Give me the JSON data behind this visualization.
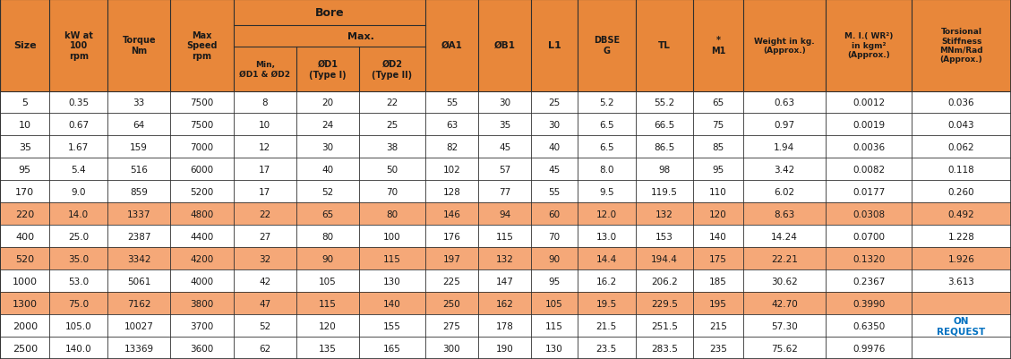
{
  "header_bg": "#E8873A",
  "row_bg_light": "#FFFFFF",
  "row_bg_dark": "#F5A878",
  "border_color": "#2F2F2F",
  "text_color_black": "#1A1A1A",
  "text_color_blue": "#0070C0",
  "col_widths_rel": [
    3.0,
    3.5,
    3.8,
    3.8,
    3.8,
    3.8,
    4.0,
    3.2,
    3.2,
    2.8,
    3.5,
    3.5,
    3.0,
    5.0,
    5.2,
    6.0
  ],
  "rows": [
    [
      "5",
      "0.35",
      "33",
      "7500",
      "8",
      "20",
      "22",
      "55",
      "30",
      "25",
      "5.2",
      "55.2",
      "65",
      "0.63",
      "0.0012",
      "0.036"
    ],
    [
      "10",
      "0.67",
      "64",
      "7500",
      "10",
      "24",
      "25",
      "63",
      "35",
      "30",
      "6.5",
      "66.5",
      "75",
      "0.97",
      "0.0019",
      "0.043"
    ],
    [
      "35",
      "1.67",
      "159",
      "7000",
      "12",
      "30",
      "38",
      "82",
      "45",
      "40",
      "6.5",
      "86.5",
      "85",
      "1.94",
      "0.0036",
      "0.062"
    ],
    [
      "95",
      "5.4",
      "516",
      "6000",
      "17",
      "40",
      "50",
      "102",
      "57",
      "45",
      "8.0",
      "98",
      "95",
      "3.42",
      "0.0082",
      "0.118"
    ],
    [
      "170",
      "9.0",
      "859",
      "5200",
      "17",
      "52",
      "70",
      "128",
      "77",
      "55",
      "9.5",
      "119.5",
      "110",
      "6.02",
      "0.0177",
      "0.260"
    ],
    [
      "220",
      "14.0",
      "1337",
      "4800",
      "22",
      "65",
      "80",
      "146",
      "94",
      "60",
      "12.0",
      "132",
      "120",
      "8.63",
      "0.0308",
      "0.492"
    ],
    [
      "400",
      "25.0",
      "2387",
      "4400",
      "27",
      "80",
      "100",
      "176",
      "115",
      "70",
      "13.0",
      "153",
      "140",
      "14.24",
      "0.0700",
      "1.228"
    ],
    [
      "520",
      "35.0",
      "3342",
      "4200",
      "32",
      "90",
      "115",
      "197",
      "132",
      "90",
      "14.4",
      "194.4",
      "175",
      "22.21",
      "0.1320",
      "1.926"
    ],
    [
      "1000",
      "53.0",
      "5061",
      "4000",
      "42",
      "105",
      "130",
      "225",
      "147",
      "95",
      "16.2",
      "206.2",
      "185",
      "30.62",
      "0.2367",
      "3.613"
    ],
    [
      "1300",
      "75.0",
      "7162",
      "3800",
      "47",
      "115",
      "140",
      "250",
      "162",
      "105",
      "19.5",
      "229.5",
      "195",
      "42.70",
      "0.3990",
      ""
    ],
    [
      "2000",
      "105.0",
      "10027",
      "3700",
      "52",
      "120",
      "155",
      "275",
      "178",
      "115",
      "21.5",
      "251.5",
      "215",
      "57.30",
      "0.6350",
      "ON REQUEST"
    ],
    [
      "2500",
      "140.0",
      "13369",
      "3600",
      "62",
      "135",
      "165",
      "300",
      "190",
      "130",
      "23.5",
      "283.5",
      "235",
      "75.62",
      "0.9976",
      ""
    ]
  ],
  "row_shading": [
    0,
    0,
    0,
    0,
    0,
    1,
    0,
    1,
    0,
    1,
    0,
    0
  ],
  "col_labels": [
    "Size",
    "kW at\n100\nrpm",
    "Torque\nNm",
    "Max\nSpeed\nrpm",
    "Min,\nØD1 & ØD2",
    "ØD1\n(Type I)",
    "ØD2\n(Type II)",
    "ØA1",
    "ØB1",
    "L1",
    "DBSE\nG",
    "TL",
    "*\nM1",
    "Weight in kg.\n(Approx.)",
    "M. I.( WR²)\nin kgm²\n(Approx.)",
    "Torsional\nStiffness\nMNm/Rad\n(Approx.)"
  ],
  "col_label_fs": [
    8,
    7,
    7,
    7,
    6.5,
    7,
    7,
    7.5,
    7.5,
    8,
    7,
    7.5,
    7,
    6.5,
    6.5,
    6.5
  ],
  "data_fs": [
    8,
    7.5,
    7.5,
    7.5,
    7.5,
    7.5,
    7.5,
    7.5,
    7.5,
    7.5,
    7.5,
    7.5,
    7.5,
    7.5,
    7.5,
    7.5
  ]
}
